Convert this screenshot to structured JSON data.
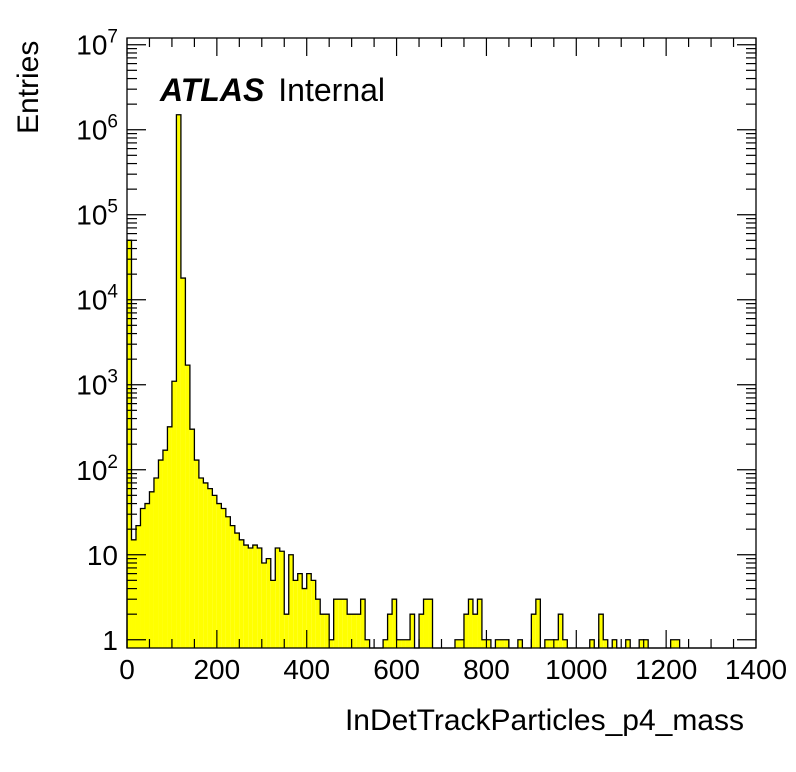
{
  "chart_data": {
    "type": "histogram",
    "xlabel": "InDetTrackParticles_p4_mass",
    "ylabel": "Entries",
    "annotation": {
      "experiment": "ATLAS",
      "status": "Internal"
    },
    "xlim": [
      0,
      1400
    ],
    "ylim": [
      0.8,
      12000000
    ],
    "yscale": "log",
    "bin_width": 10,
    "x_ticks": [
      0,
      200,
      400,
      600,
      800,
      1000,
      1200,
      1400
    ],
    "y_ticks": [
      {
        "value": 1,
        "base": "1",
        "exp": ""
      },
      {
        "value": 10,
        "base": "10",
        "exp": ""
      },
      {
        "value": 100,
        "base": "10",
        "exp": "2"
      },
      {
        "value": 1000,
        "base": "10",
        "exp": "3"
      },
      {
        "value": 10000,
        "base": "10",
        "exp": "4"
      },
      {
        "value": 100000,
        "base": "10",
        "exp": "5"
      },
      {
        "value": 1000000,
        "base": "10",
        "exp": "6"
      },
      {
        "value": 10000000,
        "base": "10",
        "exp": "7"
      }
    ],
    "fill_color": "#ffff00",
    "line_color": "#000000",
    "values": [
      50000,
      15,
      22,
      35,
      40,
      55,
      80,
      130,
      170,
      320,
      1100,
      1500000,
      18000,
      1700,
      300,
      130,
      80,
      70,
      60,
      50,
      40,
      35,
      28,
      22,
      18,
      15,
      13,
      12,
      13,
      12,
      8,
      9,
      5,
      12,
      11,
      2,
      10,
      5,
      6,
      4,
      6,
      5,
      3,
      2,
      2,
      1,
      3,
      3,
      3,
      2,
      2,
      2,
      3,
      1,
      0,
      0,
      0,
      1,
      2,
      3,
      1,
      1,
      1,
      2,
      0,
      2,
      3,
      3,
      0,
      0,
      0,
      0,
      0,
      1,
      1,
      2,
      3,
      2,
      3,
      1,
      1,
      0,
      1,
      1,
      1,
      0,
      0,
      1,
      0,
      0,
      2,
      3,
      0,
      1,
      1,
      1,
      2,
      1,
      0,
      0,
      0,
      0,
      0,
      1,
      0,
      2,
      1,
      0,
      1,
      0,
      0,
      1,
      0,
      0,
      1,
      1,
      0,
      0,
      0,
      0,
      0,
      1,
      1,
      0,
      0,
      0,
      0,
      0,
      0,
      0,
      0,
      0,
      0,
      0,
      0,
      0,
      0,
      0,
      0,
      0
    ]
  }
}
